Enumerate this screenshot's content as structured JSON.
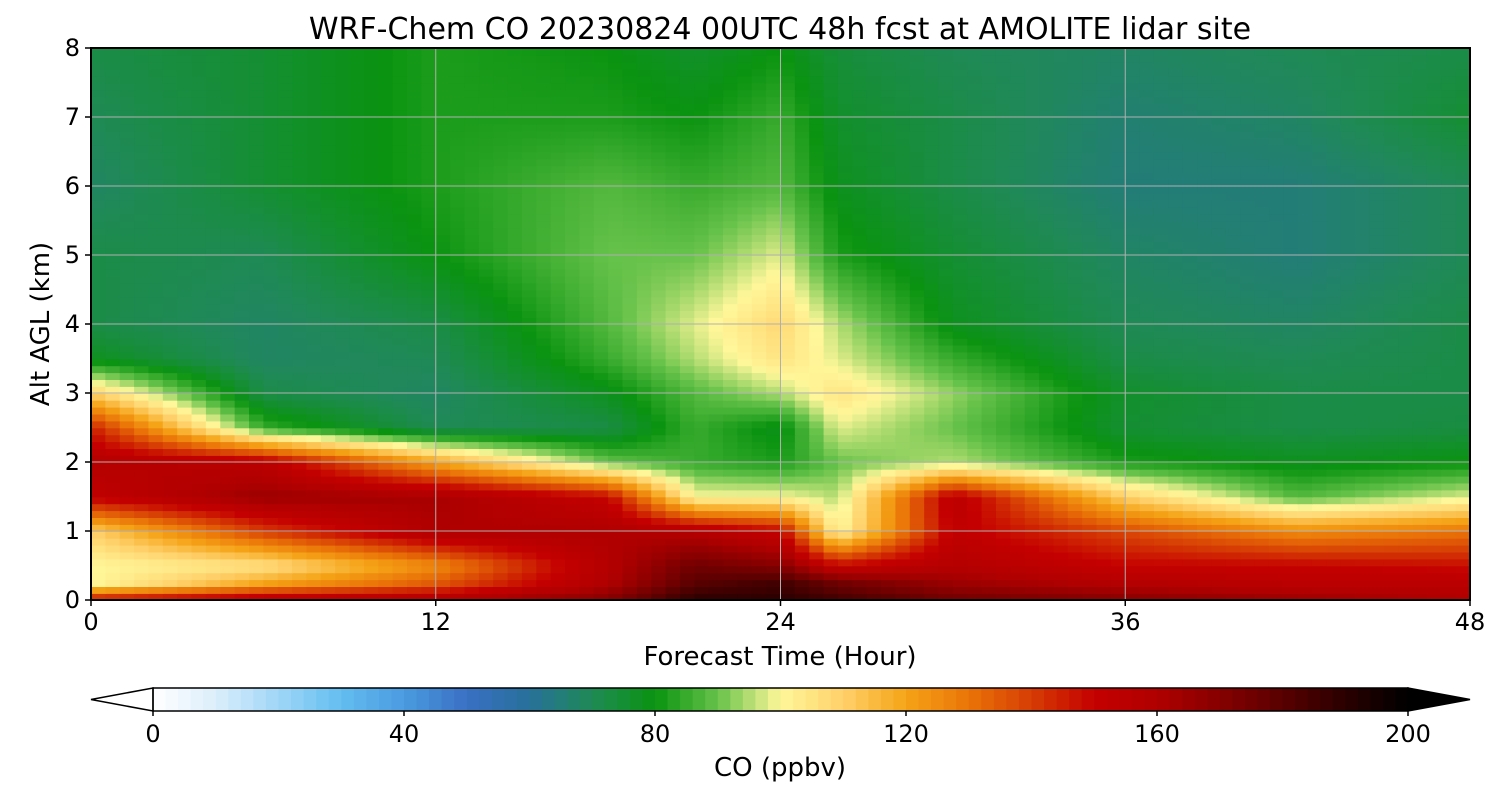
{
  "chart_data": {
    "type": "heatmap",
    "title": "WRF-Chem CO  20230824 00UTC 48h fcst at AMOLITE lidar site",
    "xlabel": "Forecast Time (Hour)",
    "ylabel": "Alt AGL (km)",
    "xlim": [
      0,
      48
    ],
    "ylim": [
      0,
      8
    ],
    "x_ticks": [
      "0",
      "12",
      "24",
      "36",
      "48"
    ],
    "y_ticks": [
      "0",
      "1",
      "2",
      "3",
      "4",
      "5",
      "6",
      "7",
      "8"
    ],
    "grid": true,
    "colorbar": {
      "label": "CO  (ppbv)",
      "range": [
        0,
        200
      ],
      "ticks": [
        "0",
        "40",
        "80",
        "120",
        "160",
        "200"
      ],
      "extend": "both",
      "colors": [
        [
          0,
          "#ffffff"
        ],
        [
          10,
          "#dbeefb"
        ],
        [
          20,
          "#9fd6f7"
        ],
        [
          30,
          "#63bdf0"
        ],
        [
          40,
          "#4a9be0"
        ],
        [
          50,
          "#3a70c4"
        ],
        [
          60,
          "#27709a"
        ],
        [
          70,
          "#1f8a55"
        ],
        [
          80,
          "#0a9310"
        ],
        [
          90,
          "#66c24a"
        ],
        [
          100,
          "#fff79a"
        ],
        [
          110,
          "#ffd06a"
        ],
        [
          120,
          "#f5a316"
        ],
        [
          130,
          "#ea7408"
        ],
        [
          140,
          "#d63c04"
        ],
        [
          150,
          "#c40000"
        ],
        [
          160,
          "#b00000"
        ],
        [
          175,
          "#700000"
        ],
        [
          190,
          "#2a0000"
        ],
        [
          200,
          "#000000"
        ]
      ]
    },
    "field_times": [
      0,
      6,
      12,
      18,
      21,
      24,
      26,
      30,
      36,
      42,
      48
    ],
    "field_alts": [
      0,
      0.25,
      0.5,
      1,
      1.5,
      2,
      2.5,
      3,
      3.5,
      4,
      5,
      6,
      7,
      8
    ],
    "co_ppbv": [
      [
        150,
        158,
        160,
        170,
        190,
        190,
        185,
        175,
        170,
        165,
        160
      ],
      [
        100,
        120,
        135,
        160,
        180,
        185,
        175,
        165,
        158,
        155,
        155
      ],
      [
        100,
        105,
        125,
        158,
        175,
        170,
        150,
        158,
        150,
        150,
        148
      ],
      [
        110,
        140,
        160,
        160,
        158,
        150,
        100,
        152,
        138,
        125,
        130
      ],
      [
        152,
        165,
        162,
        150,
        100,
        100,
        95,
        155,
        110,
        88,
        98
      ],
      [
        158,
        155,
        120,
        90,
        85,
        82,
        90,
        95,
        82,
        78,
        80
      ],
      [
        145,
        85,
        70,
        72,
        85,
        78,
        98,
        90,
        75,
        72,
        73
      ],
      [
        110,
        72,
        68,
        78,
        88,
        95,
        105,
        93,
        76,
        72,
        72
      ],
      [
        78,
        68,
        70,
        85,
        95,
        105,
        98,
        85,
        72,
        70,
        72
      ],
      [
        72,
        68,
        72,
        88,
        98,
        108,
        95,
        78,
        70,
        68,
        72
      ],
      [
        72,
        70,
        80,
        90,
        90,
        98,
        82,
        75,
        68,
        65,
        70
      ],
      [
        68,
        75,
        82,
        88,
        85,
        88,
        78,
        72,
        65,
        65,
        70
      ],
      [
        70,
        75,
        82,
        82,
        80,
        85,
        76,
        72,
        66,
        68,
        75
      ],
      [
        72,
        75,
        82,
        80,
        76,
        80,
        74,
        70,
        68,
        70,
        72
      ]
    ]
  }
}
